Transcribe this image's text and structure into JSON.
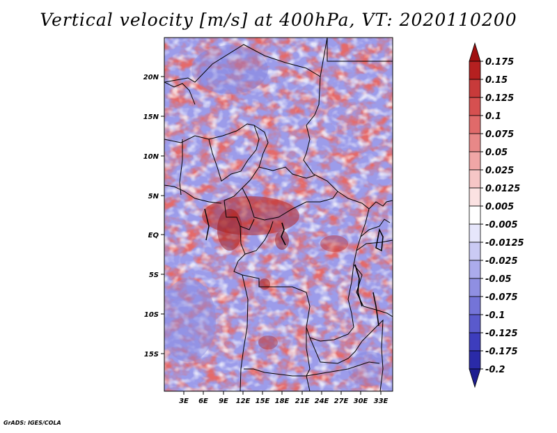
{
  "title": "Vertical velocity [m/s] at 400hPa, VT: 2020110200",
  "credit": "GrADS: IGES/COLA",
  "map": {
    "lat_ticks": [
      "20N",
      "15N",
      "10N",
      "5N",
      "EQ",
      "5S",
      "10S",
      "15S"
    ],
    "lon_ticks": [
      "3E",
      "6E",
      "9E",
      "12E",
      "15E",
      "18E",
      "21E",
      "24E",
      "27E",
      "30E",
      "33E"
    ]
  },
  "colorbar": {
    "labels": [
      "0.175",
      "0.15",
      "0.125",
      "0.1",
      "0.075",
      "0.05",
      "0.025",
      "0.0125",
      "0.005",
      "-0.005",
      "-0.0125",
      "-0.025",
      "-0.05",
      "-0.075",
      "-0.1",
      "-0.125",
      "-0.175",
      "-0.2"
    ],
    "colors": [
      "#a01010",
      "#b52020",
      "#c83a3a",
      "#d65050",
      "#e06a6a",
      "#e88888",
      "#f0a6a6",
      "#f6c6c6",
      "#fbe2e2",
      "#ffffff",
      "#e6e6fb",
      "#cacaf4",
      "#ababec",
      "#8f8fe2",
      "#7474d8",
      "#5a5acc",
      "#3d3dbd",
      "#2a2aa8",
      "#1d1d90"
    ]
  }
}
